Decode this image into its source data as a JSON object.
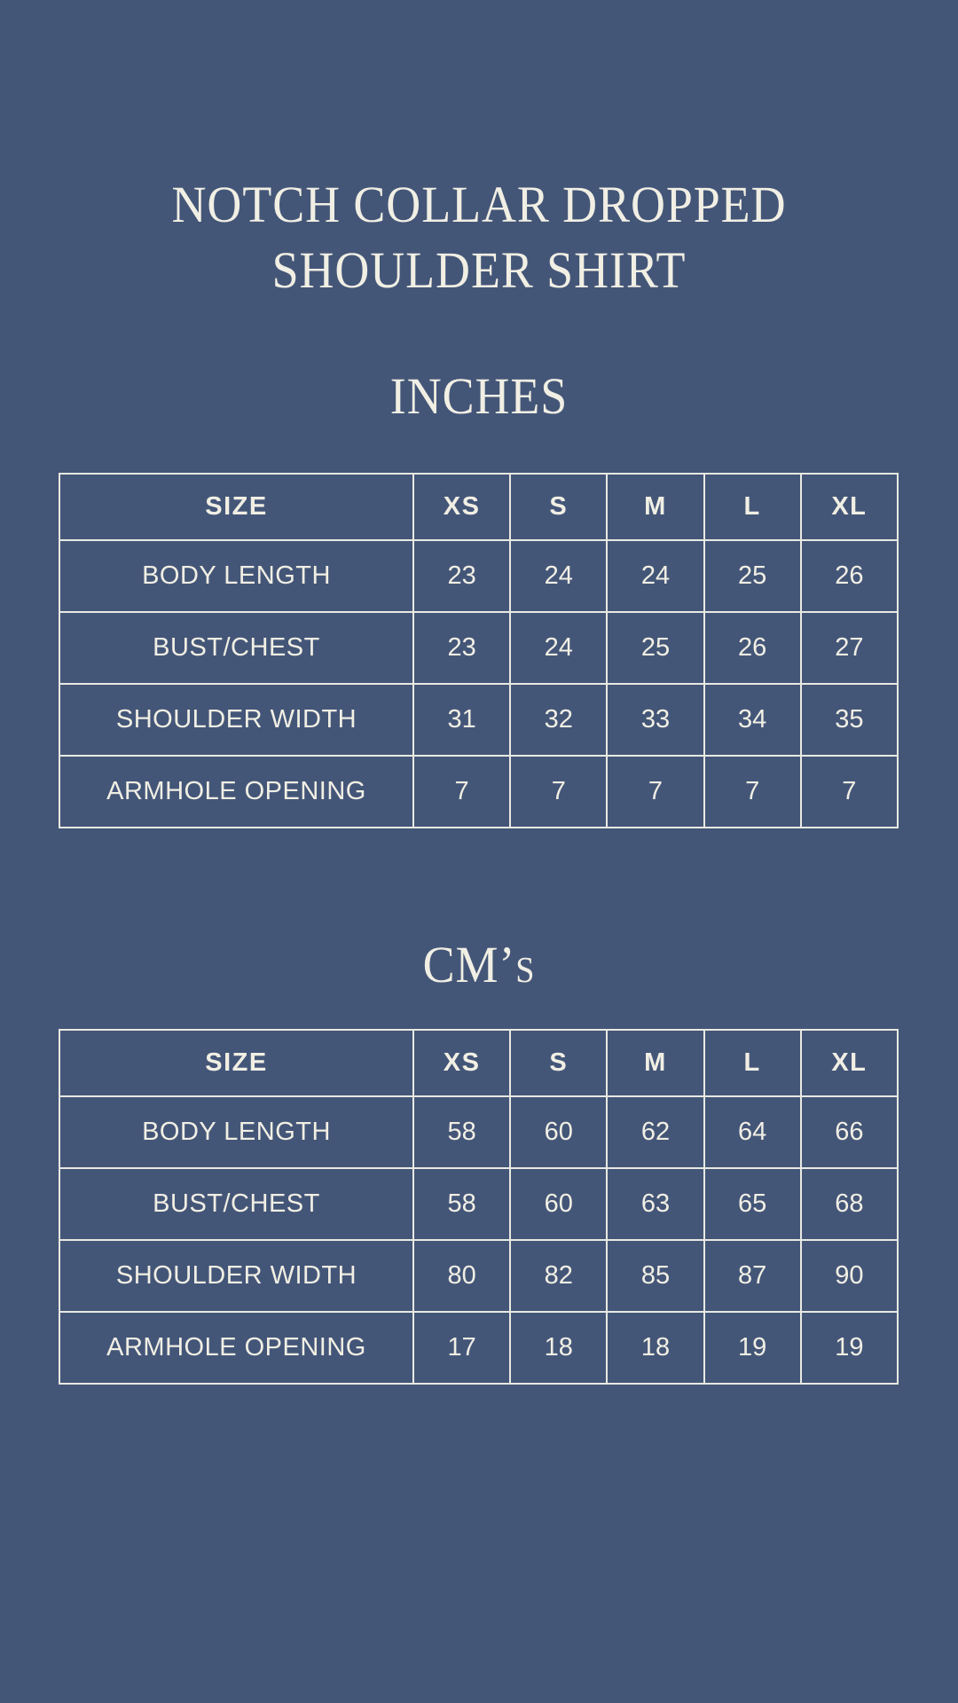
{
  "page": {
    "title_line1": "NOTCH COLLAR DROPPED",
    "title_line2": "SHOULDER SHIRT"
  },
  "colors": {
    "background": "#445678",
    "text_cream": "#f1efe4",
    "table_line": "#e8e9e2"
  },
  "tables": [
    {
      "unit_heading": "INCHES",
      "header": [
        "SIZE",
        "XS",
        "S",
        "M",
        "L",
        "XL"
      ],
      "rows": [
        {
          "label": "BODY LENGTH",
          "values": [
            "23",
            "24",
            "24",
            "25",
            "26"
          ]
        },
        {
          "label": "BUST/CHEST",
          "values": [
            "23",
            "24",
            "25",
            "26",
            "27"
          ]
        },
        {
          "label": "SHOULDER WIDTH",
          "values": [
            "31",
            "32",
            "33",
            "34",
            "35"
          ]
        },
        {
          "label": "ARMHOLE OPENING",
          "values": [
            "7",
            "7",
            "7",
            "7",
            "7"
          ]
        }
      ]
    },
    {
      "unit_heading": "CM’s",
      "header": [
        "SIZE",
        "XS",
        "S",
        "M",
        "L",
        "XL"
      ],
      "rows": [
        {
          "label": "BODY LENGTH",
          "values": [
            "58",
            "60",
            "62",
            "64",
            "66"
          ]
        },
        {
          "label": "BUST/CHEST",
          "values": [
            "58",
            "60",
            "63",
            "65",
            "68"
          ]
        },
        {
          "label": "SHOULDER WIDTH",
          "values": [
            "80",
            "82",
            "85",
            "87",
            "90"
          ]
        },
        {
          "label": "ARMHOLE OPENING",
          "values": [
            "17",
            "18",
            "18",
            "19",
            "19"
          ]
        }
      ]
    }
  ]
}
